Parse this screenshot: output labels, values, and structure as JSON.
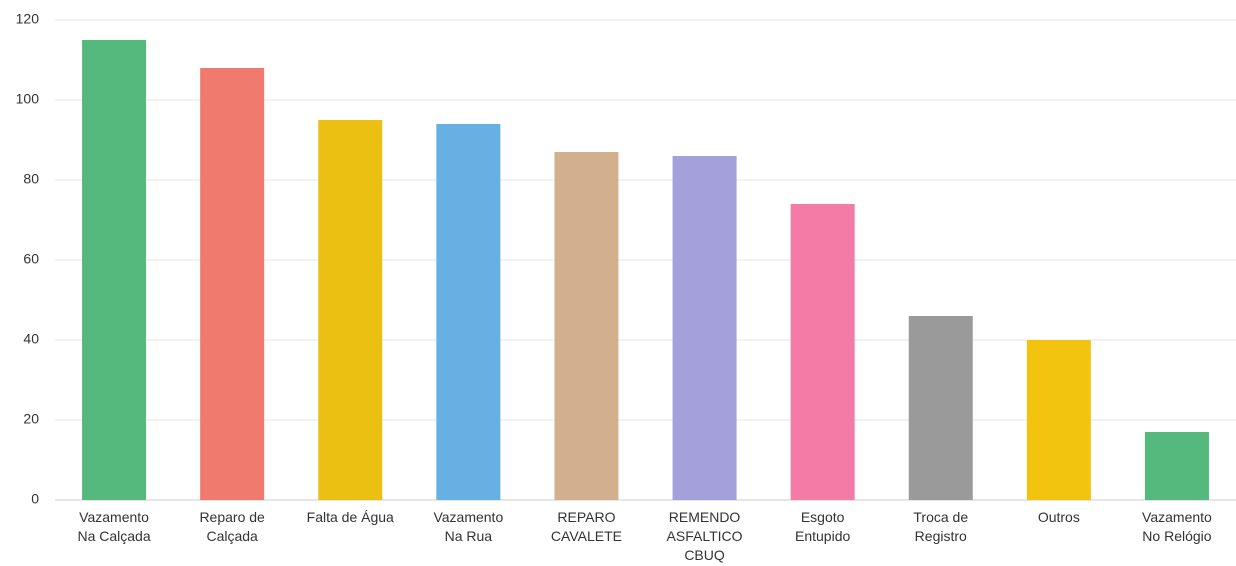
{
  "chart_data": {
    "type": "bar",
    "categories": [
      "Vazamento\nNa Calçada",
      "Reparo de\nCalçada",
      "Falta de Água",
      "Vazamento\nNa Rua",
      "REPARO\nCAVALETE",
      "REMENDO\nASFALTICO\nCBUQ",
      "Esgoto\nEntupido",
      "Troca de\nRegistro",
      "Outros",
      "Vazamento\nNo Relógio"
    ],
    "values": [
      115,
      108,
      95,
      94,
      87,
      86,
      74,
      46,
      40,
      17
    ],
    "colors": [
      "#55b87d",
      "#ef7a6d",
      "#ebc013",
      "#66b0e3",
      "#d3b08d",
      "#a3a0dc",
      "#f47ba5",
      "#9a9a9a",
      "#f2c410",
      "#55b87d"
    ],
    "ylim": [
      0,
      120
    ],
    "yticks": [
      0,
      20,
      40,
      60,
      80,
      100,
      120
    ],
    "grid": true
  }
}
